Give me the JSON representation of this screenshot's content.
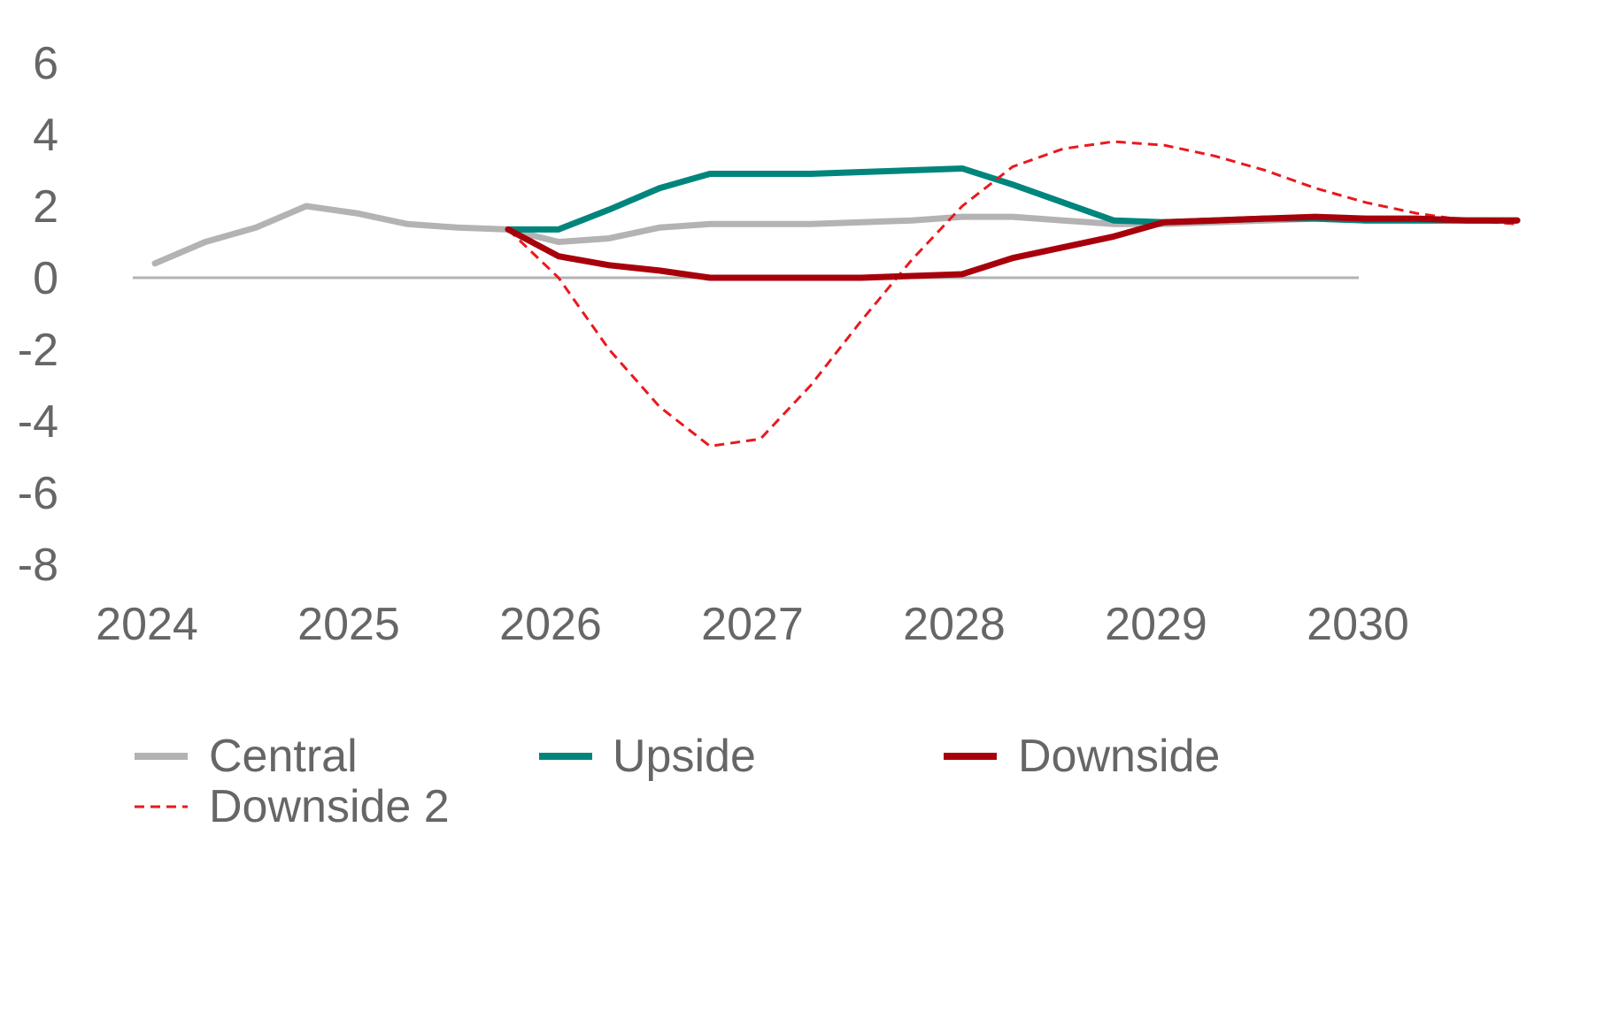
{
  "chart_data": {
    "type": "line",
    "title": "",
    "xlabel": "",
    "ylabel": "",
    "ylim": [
      -8,
      6
    ],
    "yticks": [
      6,
      4,
      2,
      0,
      -2,
      -4,
      -6,
      -8
    ],
    "xlim": [
      2024.0,
      2031.0
    ],
    "xticks": [
      "2024",
      "2025",
      "2026",
      "2027",
      "2028",
      "2029",
      "2030"
    ],
    "grid": false,
    "legend_position": "bottom",
    "series": [
      {
        "name": "Central",
        "color": "#b3b3b3",
        "style": "solid-thick",
        "x": [
          2024.0,
          2024.25,
          2024.5,
          2024.75,
          2025.0,
          2025.25,
          2025.5,
          2025.75,
          2026.0,
          2026.25,
          2026.5,
          2026.75,
          2027.0,
          2027.25,
          2027.5,
          2027.75,
          2028.0,
          2028.25,
          2028.5,
          2028.75,
          2029.0,
          2029.25,
          2029.5,
          2029.75,
          2030.0,
          2030.25,
          2030.5,
          2030.75
        ],
        "values": [
          0.4,
          1.0,
          1.4,
          2.0,
          1.8,
          1.5,
          1.4,
          1.35,
          1.0,
          1.1,
          1.4,
          1.5,
          1.5,
          1.5,
          1.55,
          1.6,
          1.7,
          1.7,
          1.6,
          1.5,
          1.5,
          1.55,
          1.6,
          1.65,
          1.6,
          1.6,
          1.6,
          1.6
        ]
      },
      {
        "name": "Upside",
        "color": "#00857d",
        "style": "solid-thick",
        "x": [
          2025.75,
          2026.0,
          2026.25,
          2026.5,
          2026.75,
          2027.0,
          2027.25,
          2027.5,
          2027.75,
          2028.0,
          2028.25,
          2028.5,
          2028.75,
          2029.0,
          2029.25,
          2029.5,
          2029.75,
          2030.0,
          2030.25,
          2030.5,
          2030.75
        ],
        "values": [
          1.35,
          1.35,
          1.9,
          2.5,
          2.9,
          2.9,
          2.9,
          2.95,
          3.0,
          3.05,
          2.6,
          2.1,
          1.6,
          1.55,
          1.6,
          1.65,
          1.65,
          1.6,
          1.6,
          1.6,
          1.6
        ]
      },
      {
        "name": "Downside",
        "color": "#a8000b",
        "style": "solid-thick",
        "x": [
          2025.75,
          2026.0,
          2026.25,
          2026.5,
          2026.75,
          2027.0,
          2027.25,
          2027.5,
          2027.75,
          2028.0,
          2028.25,
          2028.5,
          2028.75,
          2029.0,
          2029.25,
          2029.5,
          2029.75,
          2030.0,
          2030.25,
          2030.5,
          2030.75
        ],
        "values": [
          1.35,
          0.6,
          0.35,
          0.2,
          0.0,
          0.0,
          0.0,
          0.0,
          0.05,
          0.1,
          0.55,
          0.85,
          1.15,
          1.55,
          1.6,
          1.65,
          1.7,
          1.65,
          1.65,
          1.6,
          1.6
        ]
      },
      {
        "name": "Downside 2",
        "color": "#e8191f",
        "style": "dashed",
        "x": [
          2025.75,
          2026.0,
          2026.25,
          2026.5,
          2026.75,
          2027.0,
          2027.25,
          2027.5,
          2027.75,
          2028.0,
          2028.25,
          2028.5,
          2028.75,
          2029.0,
          2029.25,
          2029.5,
          2029.75,
          2030.0,
          2030.25,
          2030.5,
          2030.75
        ],
        "values": [
          1.35,
          0.0,
          -2.0,
          -3.6,
          -4.7,
          -4.5,
          -3.0,
          -1.2,
          0.5,
          2.0,
          3.1,
          3.6,
          3.8,
          3.7,
          3.4,
          3.0,
          2.5,
          2.1,
          1.8,
          1.6,
          1.5
        ]
      }
    ]
  }
}
